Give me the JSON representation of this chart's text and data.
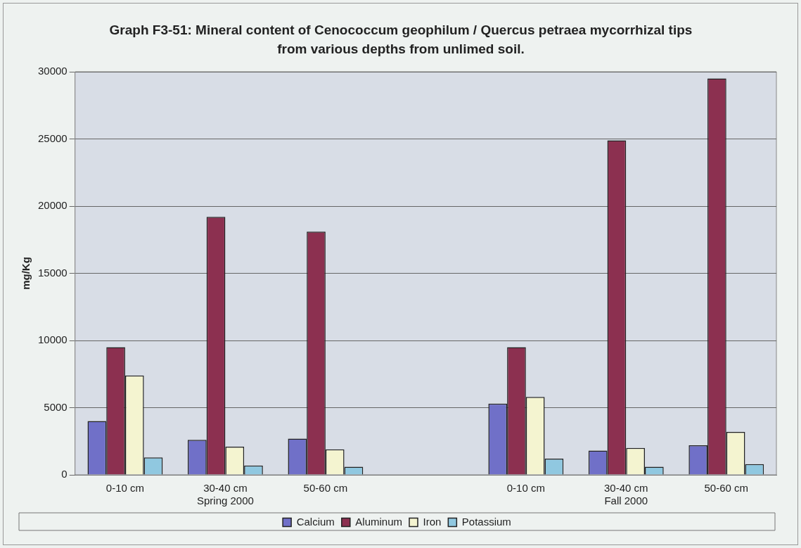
{
  "chart_data": {
    "type": "bar",
    "title": "Graph F3-51: Mineral content of Cenococcum geophilum / Quercus petraea mycorrhizal tips from various depths from unlimed soil.",
    "ylabel": "mg/Kg",
    "categories": [
      "0-10 cm",
      "30-40 cm\nSpring 2000",
      "50-60 cm",
      null,
      "0-10 cm",
      "30-40 cm\nFall 2000",
      "50-60 cm"
    ],
    "series": [
      {
        "name": "Calcium",
        "color": "#7070c8",
        "values": [
          4000,
          2600,
          2700,
          null,
          5300,
          1800,
          2200
        ]
      },
      {
        "name": "Aluminum",
        "color": "#8c3050",
        "values": [
          9500,
          19200,
          18100,
          null,
          9500,
          24900,
          29500
        ]
      },
      {
        "name": "Iron",
        "color": "#f4f4d0",
        "values": [
          7400,
          2100,
          1900,
          null,
          5800,
          2000,
          3200
        ]
      },
      {
        "name": "Potassium",
        "color": "#90c8e0",
        "values": [
          1300,
          700,
          600,
          null,
          1200,
          600,
          800
        ]
      }
    ],
    "ylim": [
      0,
      30000
    ],
    "yticks": [
      0,
      5000,
      10000,
      15000,
      20000,
      25000,
      30000
    ],
    "grid": "y",
    "legend": "bottom"
  }
}
